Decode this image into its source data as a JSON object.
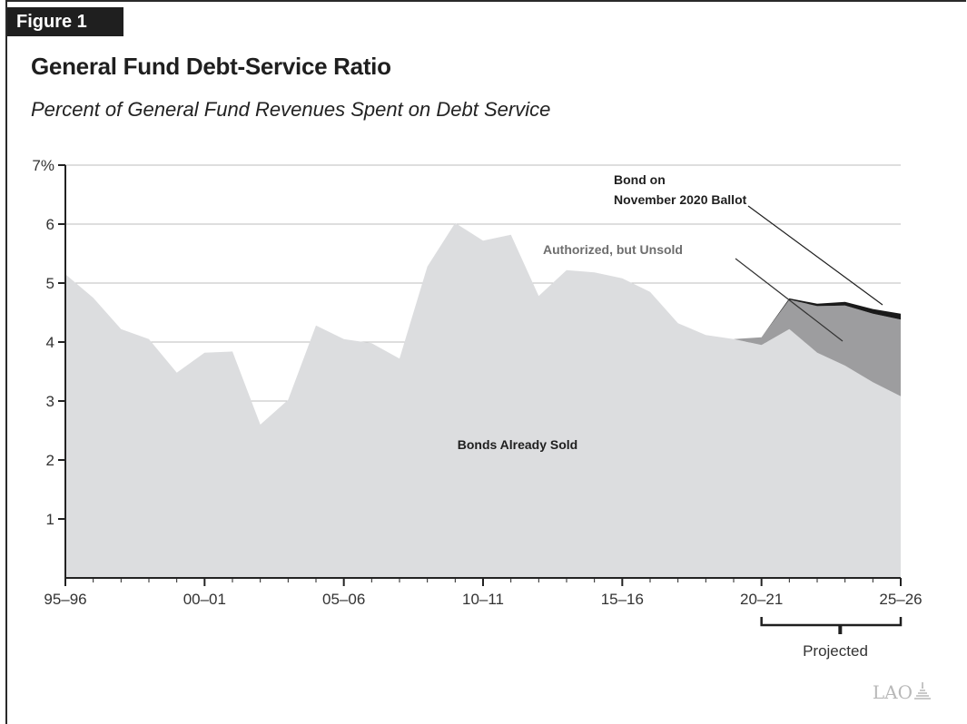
{
  "figure_label": "Figure 1",
  "title": "General Fund Debt-Service Ratio",
  "subtitle": "Percent of General Fund Revenues Spent on Debt Service",
  "logo_text": "LAO",
  "colors": {
    "already_sold": "#dcdddf",
    "authorized_unsold": "#9d9d9f",
    "ballot_bond": "#1a1a1a",
    "gridline": "#bdbdbd",
    "axis": "#222222"
  },
  "chart_data": {
    "type": "area",
    "stacked": true,
    "x_categories": [
      "95–96",
      "96–97",
      "97–98",
      "98–99",
      "99–00",
      "00–01",
      "01–02",
      "02–03",
      "03–04",
      "04–05",
      "05–06",
      "06–07",
      "07–08",
      "08–09",
      "09–10",
      "10–11",
      "11–12",
      "12–13",
      "13–14",
      "14–15",
      "15–16",
      "16–17",
      "17–18",
      "18–19",
      "19–20",
      "20–21",
      "21–22",
      "22–23",
      "23–24",
      "24–25",
      "25–26"
    ],
    "x_tick_labels": [
      "95–96",
      "00–01",
      "05–06",
      "10–11",
      "15–16",
      "20–21",
      "25–26"
    ],
    "y_ticks": [
      "7%",
      "6",
      "5",
      "4",
      "3",
      "2",
      "1"
    ],
    "ylim": [
      0,
      7
    ],
    "grid": true,
    "series": [
      {
        "name": "Bonds Already Sold",
        "values": [
          5.15,
          4.75,
          4.22,
          4.05,
          3.48,
          3.82,
          3.84,
          2.6,
          3.02,
          4.28,
          4.05,
          3.98,
          3.72,
          5.28,
          6.02,
          5.72,
          5.82,
          4.78,
          5.22,
          5.18,
          5.08,
          4.85,
          4.32,
          4.12,
          4.05,
          3.95,
          4.22,
          3.82,
          3.6,
          3.32,
          3.08
        ]
      },
      {
        "name": "Authorized, but Unsold",
        "values": [
          0,
          0,
          0,
          0,
          0,
          0,
          0,
          0,
          0,
          0,
          0,
          0,
          0,
          0,
          0,
          0,
          0,
          0,
          0,
          0,
          0,
          0,
          0,
          0,
          0,
          0.13,
          0.5,
          0.79,
          1.02,
          1.16,
          1.3
        ]
      },
      {
        "name": "Bond on November 2020 Ballot",
        "values": [
          0,
          0,
          0,
          0,
          0,
          0,
          0,
          0,
          0,
          0,
          0,
          0,
          0,
          0,
          0,
          0,
          0,
          0,
          0,
          0,
          0,
          0,
          0,
          0,
          0,
          0,
          0.02,
          0.04,
          0.06,
          0.08,
          0.1
        ]
      }
    ],
    "projected_label": "Projected",
    "projected_range": [
      "20–21",
      "25–26"
    ],
    "annotations": {
      "already_sold": "Bonds Already Sold",
      "unsold": "Authorized, but Unsold",
      "ballot_line1": "Bond on",
      "ballot_line2": "November 2020 Ballot"
    }
  }
}
